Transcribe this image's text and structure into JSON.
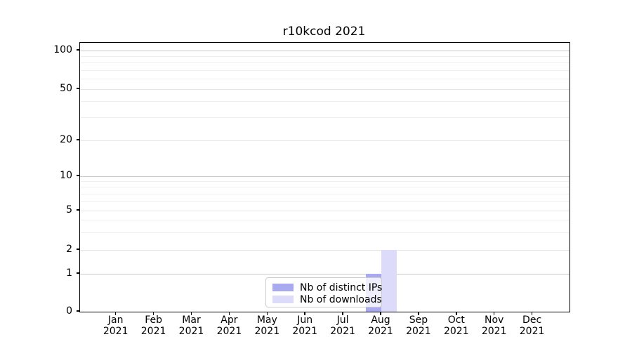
{
  "chart_data": {
    "type": "bar",
    "title": "r10kcod 2021",
    "categories": [
      "Jan 2021",
      "Feb 2021",
      "Mar 2021",
      "Apr 2021",
      "May 2021",
      "Jun 2021",
      "Jul 2021",
      "Aug 2021",
      "Sep 2021",
      "Oct 2021",
      "Nov 2021",
      "Dec 2021"
    ],
    "series": [
      {
        "name": "Nb of distinct IPs",
        "color": "#a9a9ef",
        "values": [
          0,
          0,
          0,
          0,
          0,
          0,
          0,
          1,
          0,
          0,
          0,
          0
        ]
      },
      {
        "name": "Nb of downloads",
        "color": "#dcdcfa",
        "values": [
          0,
          0,
          0,
          0,
          0,
          0,
          0,
          2,
          0,
          0,
          0,
          0
        ]
      }
    ],
    "xlabel": "",
    "ylabel": "",
    "yscale": "symlog",
    "ylim": [
      0,
      115
    ],
    "ytick_labels": [
      "0",
      "1",
      "2",
      "5",
      "10",
      "20",
      "50",
      "100"
    ],
    "ytick_values": [
      0,
      1,
      2,
      5,
      10,
      20,
      50,
      100
    ],
    "minor_ytick_values": [
      3,
      4,
      6,
      7,
      8,
      9,
      30,
      40,
      60,
      70,
      80,
      90
    ],
    "grid": "horizontal",
    "legend_position": "lower center"
  },
  "colors": {
    "background": "#ffffff",
    "spine": "#000000",
    "major_grid": "#c9c9c9",
    "labeled_minor_grid": "#e4e4e4",
    "minor_grid": "#efefef",
    "legend_border": "#cccccc",
    "bar_distinct_ips": "#a9a9ef",
    "bar_downloads": "#dcdcfa"
  }
}
